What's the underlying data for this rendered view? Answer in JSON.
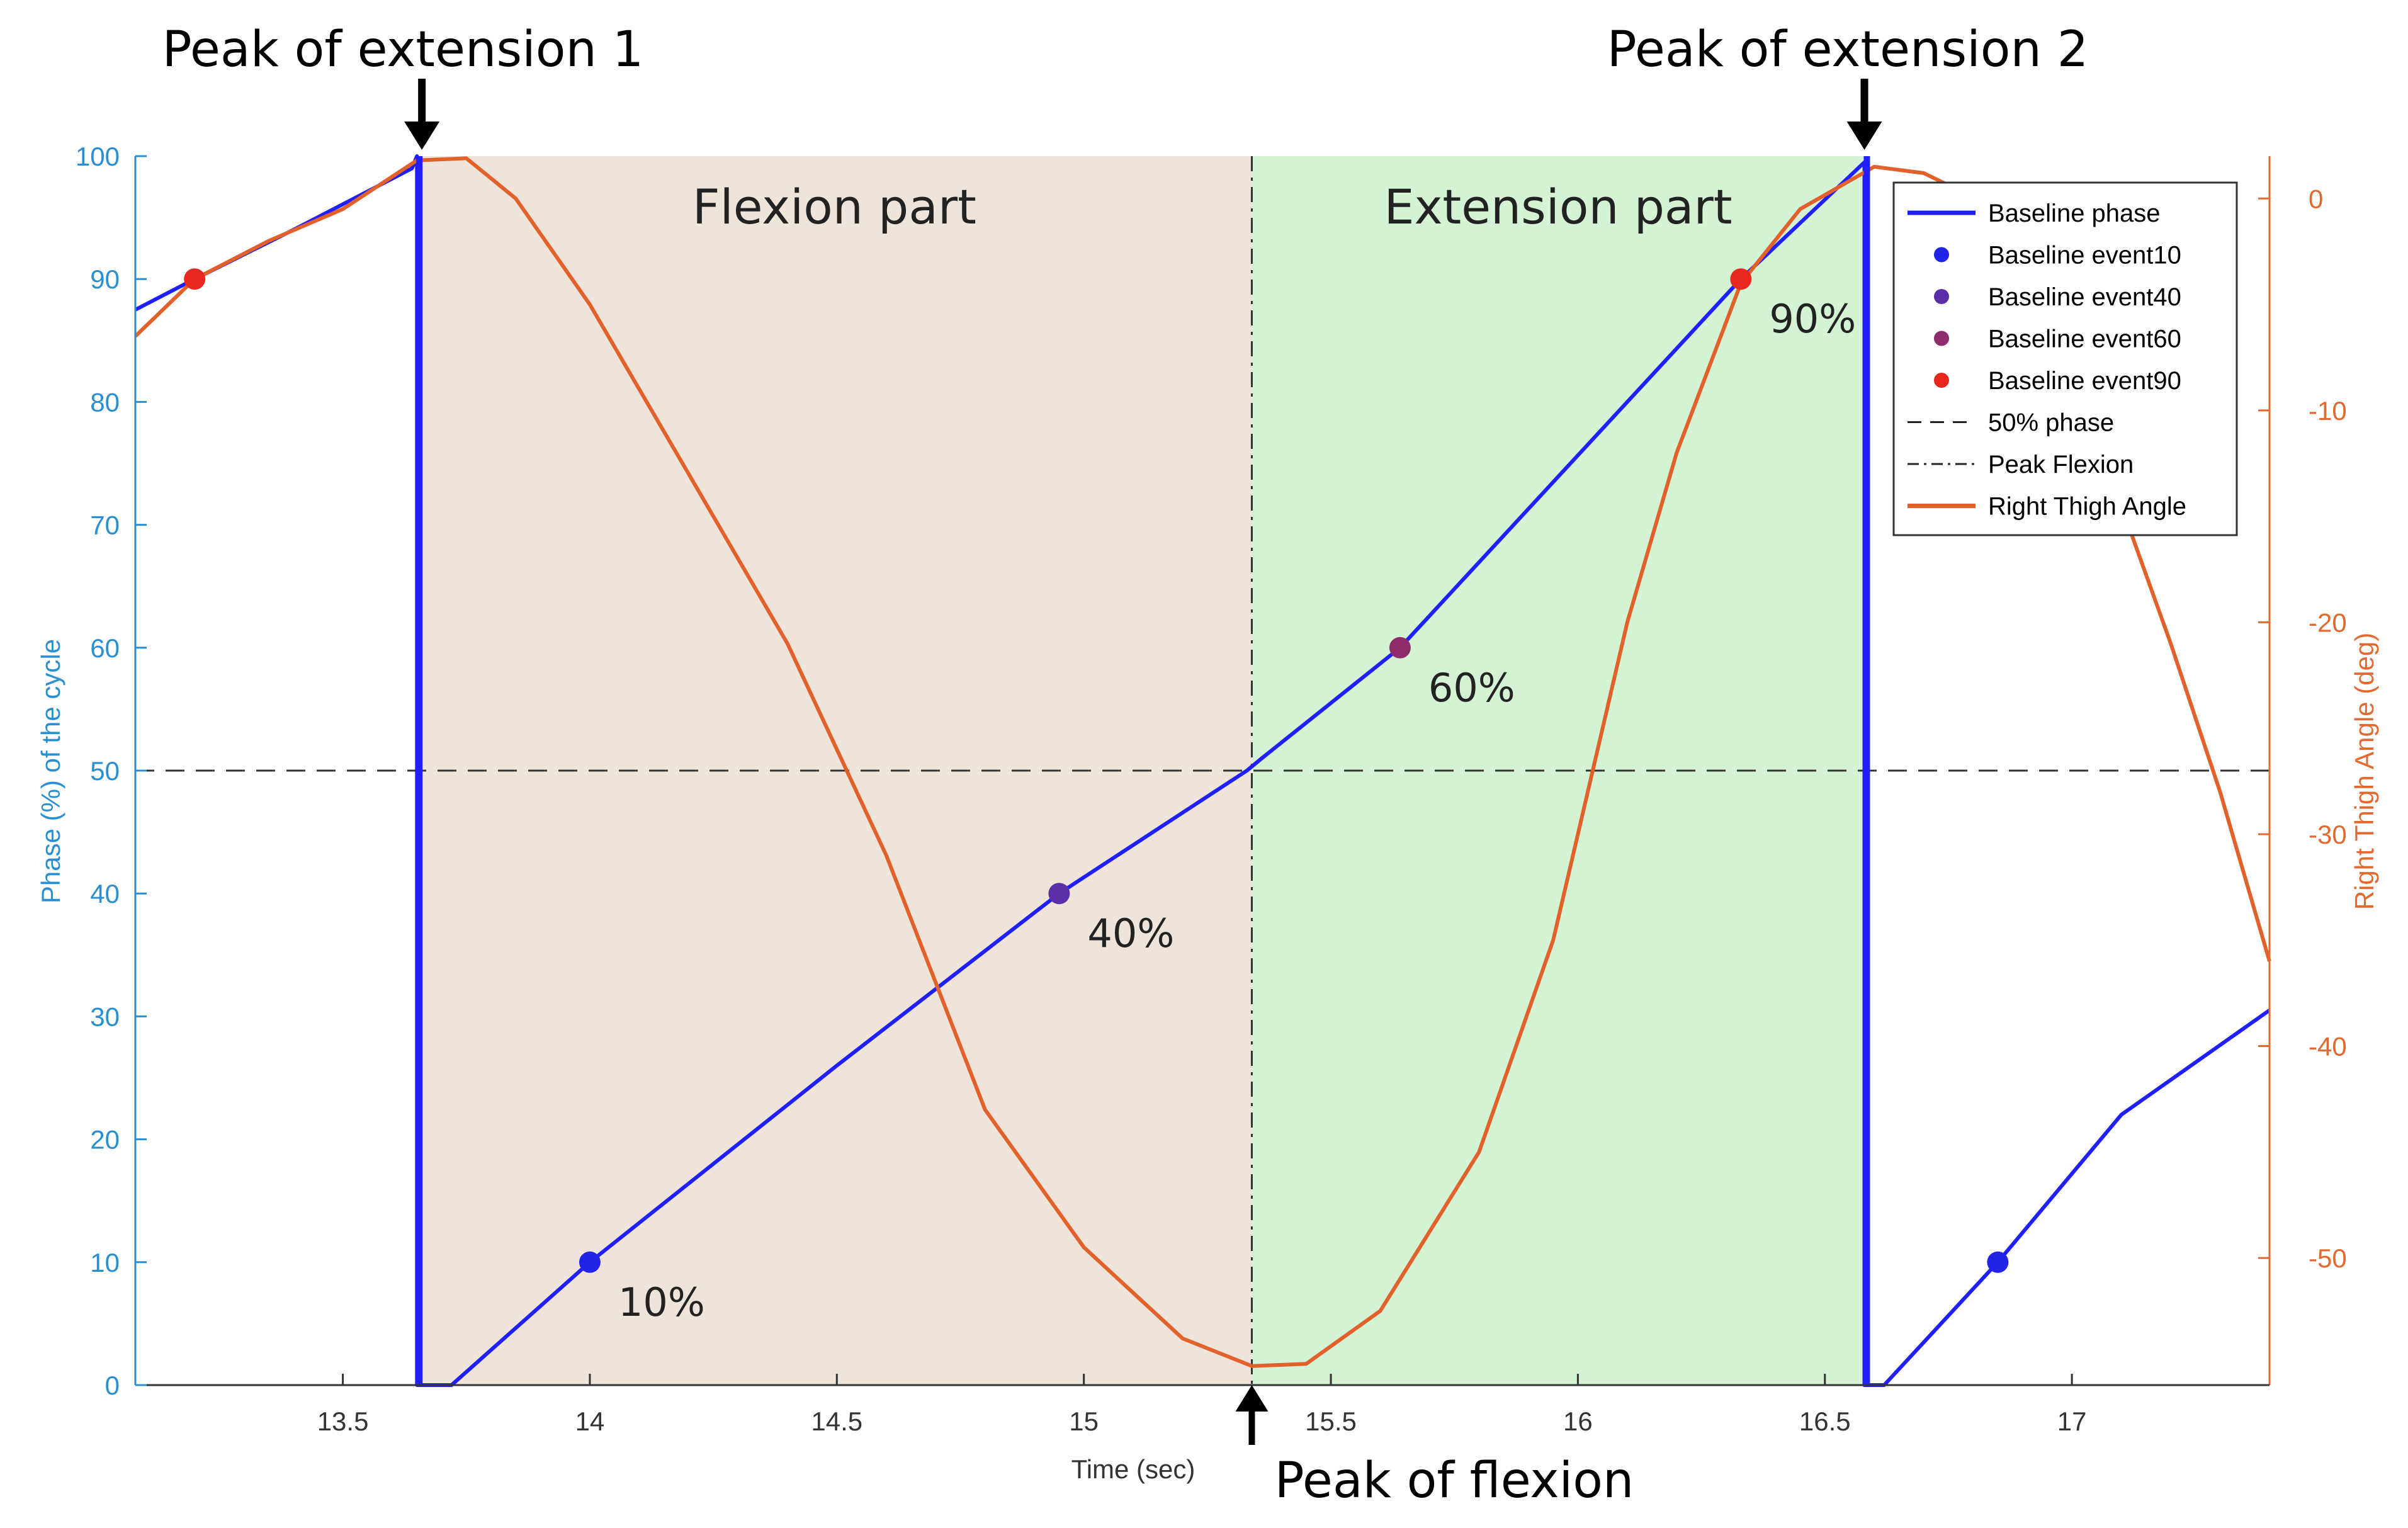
{
  "chart_data": {
    "type": "line",
    "xlabel": "Time (sec)",
    "ylabel_left": "Phase (%) of the cycle",
    "ylabel_right": "Right Thigh Angle (deg)",
    "xlim": [
      13.08,
      17.4
    ],
    "ylim_left": [
      0,
      100
    ],
    "ylim_right": [
      -56,
      2
    ],
    "x_ticks": [
      13.5,
      14,
      14.5,
      15,
      15.5,
      16,
      16.5,
      17
    ],
    "x_tick_labels": [
      "13.5",
      "14",
      "14.5",
      "15",
      "15.5",
      "16",
      "16.5",
      "17"
    ],
    "y_ticks_left": [
      0,
      10,
      20,
      30,
      40,
      50,
      60,
      70,
      80,
      90,
      100
    ],
    "y_tick_labels_left": [
      "0",
      "10",
      "20",
      "30",
      "40",
      "50",
      "60",
      "70",
      "80",
      "90",
      "100"
    ],
    "y_ticks_right": [
      -50,
      -40,
      -30,
      -20,
      -10,
      0
    ],
    "y_tick_labels_right": [
      "-50",
      "-40",
      "-30",
      "-20",
      "-10",
      "0"
    ],
    "regions": [
      {
        "label": "Flexion part",
        "x_start": 13.65,
        "x_end": 15.34,
        "color": "#efe4da"
      },
      {
        "label": "Extension part",
        "x_start": 15.34,
        "x_end": 16.58,
        "color": "#d4f2d4"
      }
    ],
    "series": [
      {
        "name": "Baseline phase",
        "axis": "left",
        "color": "#1f1fff",
        "points": [
          [
            13.08,
            87.5
          ],
          [
            13.2,
            90
          ],
          [
            13.4,
            94
          ],
          [
            13.64,
            99
          ],
          [
            13.65,
            100
          ],
          [
            13.65,
            0
          ],
          [
            13.72,
            0
          ],
          [
            14.0,
            10
          ],
          [
            14.5,
            26
          ],
          [
            14.95,
            40
          ],
          [
            15.33,
            50
          ],
          [
            15.36,
            51
          ],
          [
            15.64,
            60
          ],
          [
            16.33,
            90
          ],
          [
            16.58,
            99.5
          ],
          [
            16.58,
            0
          ],
          [
            16.62,
            0
          ],
          [
            16.85,
            10
          ],
          [
            17.1,
            22
          ],
          [
            17.4,
            30.5
          ]
        ]
      },
      {
        "name": "Right Thigh Angle",
        "axis": "right",
        "color": "#e2612b",
        "points": [
          [
            13.08,
            -6.5
          ],
          [
            13.2,
            -3.8
          ],
          [
            13.35,
            -2
          ],
          [
            13.5,
            -0.5
          ],
          [
            13.65,
            1.8
          ],
          [
            13.75,
            1.9
          ],
          [
            13.85,
            0
          ],
          [
            14.0,
            -5
          ],
          [
            14.2,
            -13
          ],
          [
            14.4,
            -21
          ],
          [
            14.5,
            -26
          ],
          [
            14.6,
            -31
          ],
          [
            14.8,
            -43
          ],
          [
            15.0,
            -49.5
          ],
          [
            15.2,
            -53.8
          ],
          [
            15.34,
            -55.1
          ],
          [
            15.45,
            -55
          ],
          [
            15.6,
            -52.5
          ],
          [
            15.8,
            -45
          ],
          [
            15.95,
            -35
          ],
          [
            16.1,
            -20
          ],
          [
            16.2,
            -12
          ],
          [
            16.33,
            -4
          ],
          [
            16.45,
            -0.5
          ],
          [
            16.6,
            1.5
          ],
          [
            16.7,
            1.2
          ],
          [
            16.85,
            -0.5
          ],
          [
            17.0,
            -8
          ],
          [
            17.2,
            -21
          ],
          [
            17.3,
            -28
          ],
          [
            17.4,
            -36
          ]
        ]
      }
    ],
    "events": [
      {
        "name": "Baseline event10",
        "color": "#2323e8",
        "points": [
          [
            14.0,
            10
          ],
          [
            16.85,
            10
          ]
        ]
      },
      {
        "name": "Baseline event40",
        "color": "#5a2fa7",
        "points": [
          [
            14.95,
            40
          ]
        ]
      },
      {
        "name": "Baseline event60",
        "color": "#8e2b6a",
        "points": [
          [
            15.64,
            60
          ]
        ]
      },
      {
        "name": "Baseline event90",
        "color": "#e8281e",
        "points": [
          [
            13.2,
            90
          ],
          [
            16.33,
            90
          ]
        ]
      }
    ],
    "event_labels": [
      {
        "text": "10%",
        "x": 14.0,
        "y": 10
      },
      {
        "text": "40%",
        "x": 14.95,
        "y": 40
      },
      {
        "text": "60%",
        "x": 15.64,
        "y": 60
      },
      {
        "text": "90%",
        "x": 16.33,
        "y": 90
      }
    ],
    "reference_lines": {
      "phase_50": {
        "name": "50% phase",
        "y": 50,
        "style": "dashed"
      },
      "peak_flexion": {
        "name": "Peak Flexion",
        "x": 15.34,
        "style": "dash-dot"
      }
    },
    "annotations": [
      {
        "text": "Peak of extension 1",
        "x": 13.66
      },
      {
        "text": "Peak of extension 2",
        "x": 16.58
      },
      {
        "text": "Peak of flexion",
        "x": 15.34
      }
    ],
    "legend": {
      "placement": "top-right",
      "entries": [
        "Baseline phase",
        "Baseline event10",
        "Baseline event40",
        "Baseline event60",
        "Baseline event90",
        "50% phase",
        "Peak Flexion",
        "Right Thigh Angle"
      ]
    },
    "colors": {
      "left_axis": "#2a8fd0",
      "right_axis": "#e06a30",
      "phase": "#1f1fff",
      "thigh": "#e2612b"
    }
  }
}
